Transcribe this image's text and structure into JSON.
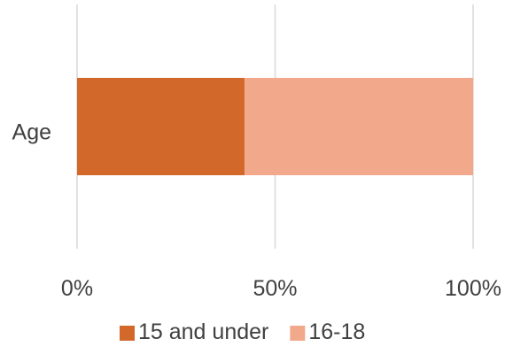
{
  "chart_data": {
    "type": "bar",
    "orientation": "horizontal",
    "stacked": "percent",
    "categories": [
      "Age"
    ],
    "series": [
      {
        "name": "15 and under",
        "values": [
          42.3
        ],
        "color": "#d2692a"
      },
      {
        "name": "16-18",
        "values": [
          57.7
        ],
        "color": "#f2a98b"
      }
    ],
    "xlim": [
      0,
      100
    ],
    "x_ticks": [
      0,
      50,
      100
    ],
    "x_tick_labels": [
      "0%",
      "50%",
      "100%"
    ],
    "grid": "vertical",
    "legend_position": "bottom"
  }
}
